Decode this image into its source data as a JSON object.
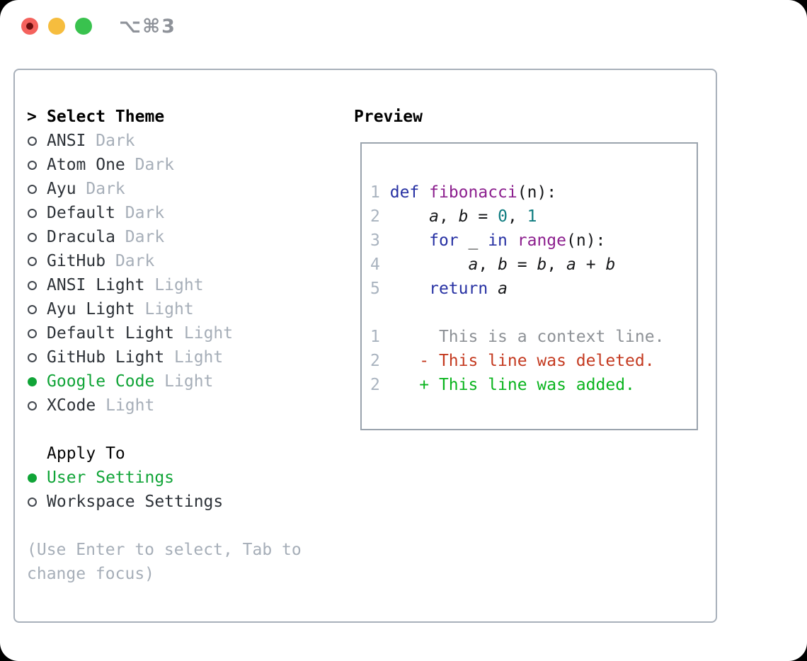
{
  "colors": {
    "accent_green": "#10a437",
    "diff_added": "#0ab41e",
    "diff_deleted": "#c43a20",
    "diff_context": "#8d9196",
    "syntax_keyword": "#2731a3",
    "syntax_function": "#8c1f8e",
    "syntax_literal": "#0e7c80",
    "line_number": "#a9b3bf",
    "muted_gray": "#a6aeb8",
    "traffic_red": "#f4625d",
    "traffic_yellow": "#f6bd3e",
    "traffic_green": "#39c24e"
  },
  "window": {
    "title": "⌥⌘3"
  },
  "theme_picker": {
    "header": {
      "prompt": ">",
      "label": "Select Theme"
    },
    "themes": [
      {
        "name": "ANSI",
        "variant": "Dark",
        "selected": false
      },
      {
        "name": "Atom One",
        "variant": "Dark",
        "selected": false
      },
      {
        "name": "Ayu",
        "variant": "Dark",
        "selected": false
      },
      {
        "name": "Default",
        "variant": "Dark",
        "selected": false
      },
      {
        "name": "Dracula",
        "variant": "Dark",
        "selected": false
      },
      {
        "name": "GitHub",
        "variant": "Dark",
        "selected": false
      },
      {
        "name": "ANSI Light",
        "variant": "Light",
        "selected": false
      },
      {
        "name": "Ayu Light",
        "variant": "Light",
        "selected": false
      },
      {
        "name": "Default Light",
        "variant": "Light",
        "selected": false
      },
      {
        "name": "GitHub Light",
        "variant": "Light",
        "selected": false
      },
      {
        "name": "Google Code",
        "variant": "Light",
        "selected": true
      },
      {
        "name": "XCode",
        "variant": "Light",
        "selected": false
      }
    ],
    "apply_to": {
      "label": "Apply To",
      "options": [
        {
          "name": "User Settings",
          "selected": true
        },
        {
          "name": "Workspace Settings",
          "selected": false
        }
      ]
    },
    "hint_lines": [
      "(Use Enter to select, Tab to",
      "change focus)"
    ]
  },
  "preview": {
    "label": "Preview",
    "code_lines": [
      {
        "num": "1",
        "tokens": [
          {
            "t": "def",
            "c": "kwd"
          },
          {
            "t": " ",
            "c": "pln"
          },
          {
            "t": "fibonacci",
            "c": "fun"
          },
          {
            "t": "(n):",
            "c": "pln"
          }
        ]
      },
      {
        "num": "2",
        "tokens": [
          {
            "t": "    ",
            "c": "pln"
          },
          {
            "t": "a",
            "c": "var"
          },
          {
            "t": ", ",
            "c": "pln"
          },
          {
            "t": "b",
            "c": "var"
          },
          {
            "t": " = ",
            "c": "pln"
          },
          {
            "t": "0",
            "c": "lit"
          },
          {
            "t": ", ",
            "c": "pln"
          },
          {
            "t": "1",
            "c": "lit"
          }
        ]
      },
      {
        "num": "3",
        "tokens": [
          {
            "t": "    ",
            "c": "pln"
          },
          {
            "t": "for",
            "c": "kwd"
          },
          {
            "t": " _ ",
            "c": "pln"
          },
          {
            "t": "in",
            "c": "kwd"
          },
          {
            "t": " ",
            "c": "pln"
          },
          {
            "t": "range",
            "c": "fun"
          },
          {
            "t": "(n):",
            "c": "pln"
          }
        ]
      },
      {
        "num": "4",
        "tokens": [
          {
            "t": "        ",
            "c": "pln"
          },
          {
            "t": "a",
            "c": "var"
          },
          {
            "t": ", ",
            "c": "pln"
          },
          {
            "t": "b",
            "c": "var"
          },
          {
            "t": " = ",
            "c": "pln"
          },
          {
            "t": "b",
            "c": "var"
          },
          {
            "t": ", ",
            "c": "pln"
          },
          {
            "t": "a",
            "c": "var"
          },
          {
            "t": " + ",
            "c": "pln"
          },
          {
            "t": "b",
            "c": "var"
          }
        ]
      },
      {
        "num": "5",
        "tokens": [
          {
            "t": "    ",
            "c": "pln"
          },
          {
            "t": "return",
            "c": "kwd"
          },
          {
            "t": " ",
            "c": "pln"
          },
          {
            "t": "a",
            "c": "var"
          }
        ]
      }
    ],
    "diff_lines": [
      {
        "num": "1",
        "type": "context",
        "text": "      This is a context line."
      },
      {
        "num": "2",
        "type": "deleted",
        "text": "    - This line was deleted."
      },
      {
        "num": "2",
        "type": "added",
        "text": "    + This line was added."
      }
    ]
  }
}
